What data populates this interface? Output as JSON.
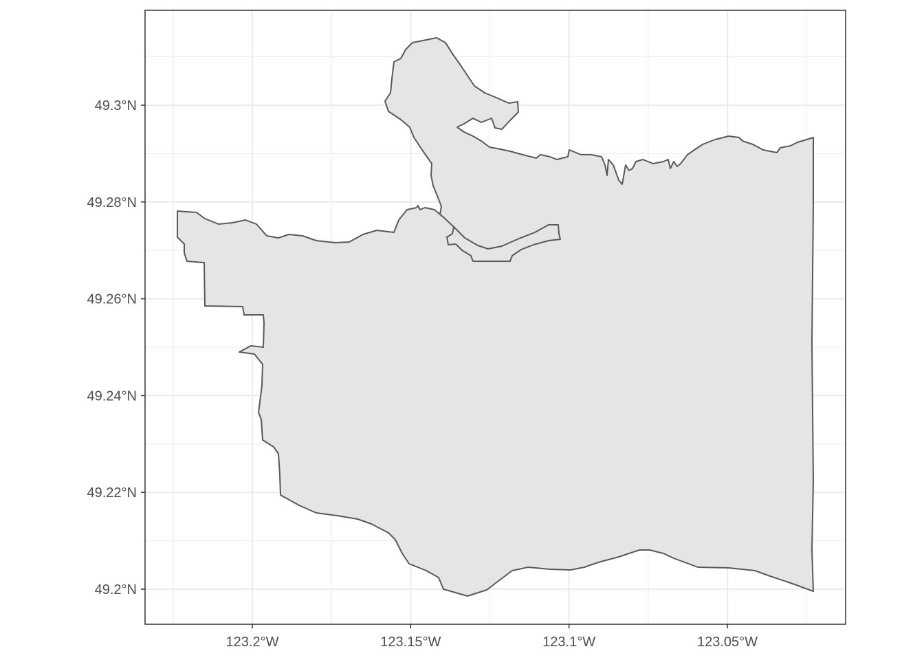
{
  "map": {
    "region_fill": "#e5e5e5",
    "region_stroke": "#595959",
    "panel_border": "#333333",
    "grid_color": "#ebebeb",
    "x_ticks": [
      {
        "value": -123.2,
        "label": "123.2°W"
      },
      {
        "value": -123.15,
        "label": "123.15°W"
      },
      {
        "value": -123.1,
        "label": "123.1°W"
      },
      {
        "value": -123.05,
        "label": "123.05°W"
      }
    ],
    "y_ticks": [
      {
        "value": 49.2,
        "label": "49.2°N"
      },
      {
        "value": 49.22,
        "label": "49.22°N"
      },
      {
        "value": 49.24,
        "label": "49.24°N"
      },
      {
        "value": 49.26,
        "label": "49.26°N"
      },
      {
        "value": 49.28,
        "label": "49.28°N"
      },
      {
        "value": 49.3,
        "label": "49.3°N"
      }
    ]
  }
}
